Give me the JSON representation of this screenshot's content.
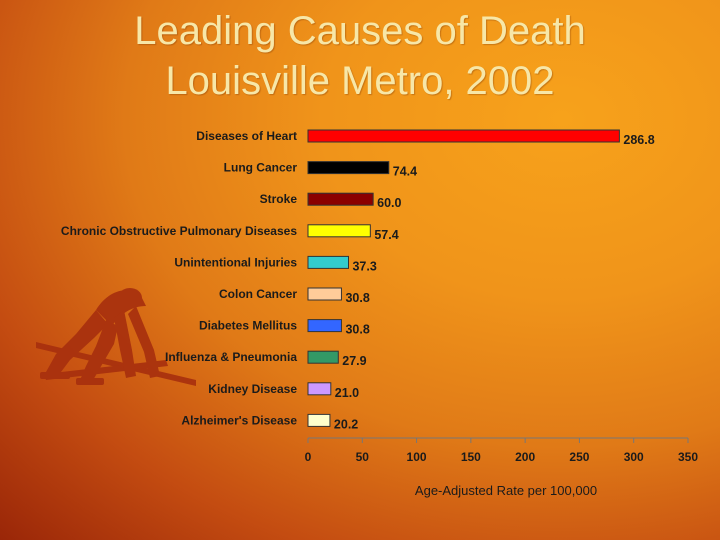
{
  "slide": {
    "title_line1": "Leading Causes of Death",
    "title_line2": "Louisville Metro, 2002",
    "decoration_icon": "sprinter-in-starting-blocks-icon"
  },
  "chart_data": {
    "type": "bar",
    "orientation": "horizontal",
    "categories": [
      "Diseases of Heart",
      "Lung Cancer",
      "Stroke",
      "Chronic Obstructive Pulmonary Diseases",
      "Unintentional Injuries",
      "Colon Cancer",
      "Diabetes Mellitus",
      "Influenza & Pneumonia",
      "Kidney Disease",
      "Alzheimer's Disease"
    ],
    "values": [
      286.8,
      74.4,
      60.0,
      57.4,
      37.3,
      30.8,
      30.8,
      27.9,
      21.0,
      20.2
    ],
    "value_labels": [
      "286.8",
      "74.4",
      "60.0",
      "57.4",
      "37.3",
      "30.8",
      "30.8",
      "27.9",
      "21.0",
      "20.2"
    ],
    "colors": [
      "#ff0000",
      "#000000",
      "#8b0000",
      "#ffff00",
      "#33cccc",
      "#ffcc99",
      "#3366ff",
      "#339966",
      "#cc99ff",
      "#ffffcc"
    ],
    "xlabel": "Age-Adjusted Rate per 100,000",
    "xlim": [
      0,
      350
    ],
    "xticks": [
      0,
      50,
      100,
      150,
      200,
      250,
      300,
      350
    ],
    "grid": false,
    "legend": "none"
  }
}
